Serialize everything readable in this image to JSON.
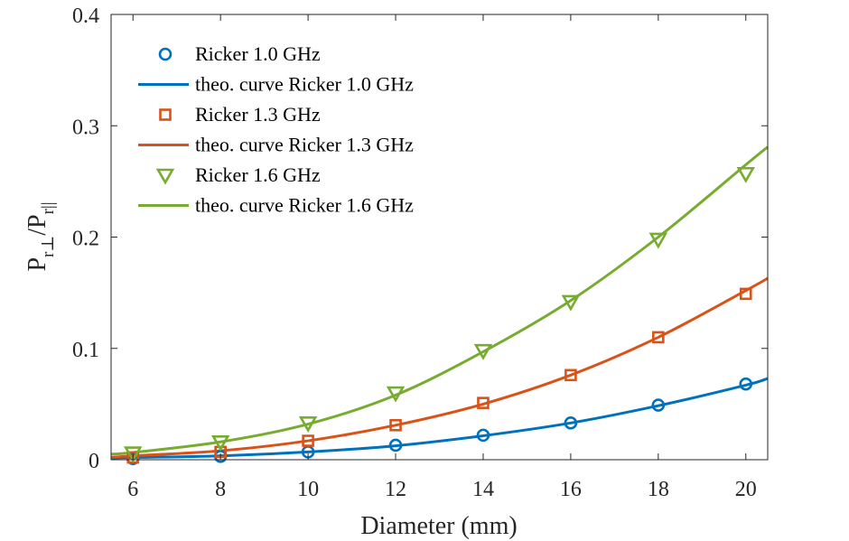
{
  "chart_data": {
    "type": "scatter",
    "xlabel": "Diameter (mm)",
    "ylabel": {
      "main": "P",
      "sub1": "r⊥",
      "sep": "/P",
      "sub2": "r||"
    },
    "xlim": [
      5.5,
      20.5
    ],
    "ylim": [
      0,
      0.4
    ],
    "xticks": [
      6,
      8,
      10,
      12,
      14,
      16,
      18,
      20
    ],
    "xtick_labels": [
      "6",
      "8",
      "10",
      "12",
      "14",
      "16",
      "18",
      "20"
    ],
    "yticks": [
      0,
      0.1,
      0.2,
      0.3,
      0.4
    ],
    "ytick_labels": [
      "0",
      "0.1",
      "0.2",
      "0.3",
      "0.4"
    ],
    "legend_position": "top-left",
    "series": [
      {
        "name": "Ricker 1.0 GHz",
        "kind": "markers",
        "marker": "circle",
        "color": "#0072BD",
        "x": [
          6,
          8,
          10,
          12,
          14,
          16,
          18,
          20
        ],
        "values": [
          0.001,
          0.003,
          0.007,
          0.013,
          0.022,
          0.033,
          0.049,
          0.068
        ]
      },
      {
        "name": "theo. curve Ricker 1.0 GHz",
        "kind": "line",
        "color": "#0072BD",
        "x": [
          5.5,
          6,
          8,
          10,
          12,
          14,
          16,
          18,
          20,
          20.5
        ],
        "values": [
          0.0015,
          0.002,
          0.0035,
          0.007,
          0.0125,
          0.0215,
          0.033,
          0.0485,
          0.067,
          0.073
        ]
      },
      {
        "name": "Ricker 1.3 GHz",
        "kind": "markers",
        "marker": "square",
        "color": "#D95319",
        "x": [
          6,
          8,
          10,
          12,
          14,
          16,
          18,
          20
        ],
        "values": [
          0.002,
          0.007,
          0.017,
          0.031,
          0.051,
          0.076,
          0.11,
          0.149
        ]
      },
      {
        "name": "theo. curve Ricker 1.3 GHz",
        "kind": "line",
        "color": "#D95319",
        "x": [
          5.5,
          6,
          8,
          10,
          12,
          14,
          16,
          18,
          20,
          20.5
        ],
        "values": [
          0.002,
          0.0035,
          0.008,
          0.017,
          0.031,
          0.05,
          0.076,
          0.11,
          0.152,
          0.163
        ]
      },
      {
        "name": "Ricker 1.6 GHz",
        "kind": "markers",
        "marker": "triangle-down",
        "color": "#77AC30",
        "x": [
          6,
          8,
          10,
          12,
          14,
          16,
          18,
          20
        ],
        "values": [
          0.006,
          0.016,
          0.033,
          0.06,
          0.098,
          0.142,
          0.198,
          0.257
        ]
      },
      {
        "name": "theo. curve Ricker 1.6 GHz",
        "kind": "line",
        "color": "#77AC30",
        "x": [
          5.5,
          6,
          8,
          10,
          12,
          14,
          16,
          18,
          20,
          20.5
        ],
        "values": [
          0.005,
          0.0065,
          0.016,
          0.032,
          0.058,
          0.097,
          0.143,
          0.2,
          0.265,
          0.281
        ]
      }
    ]
  }
}
